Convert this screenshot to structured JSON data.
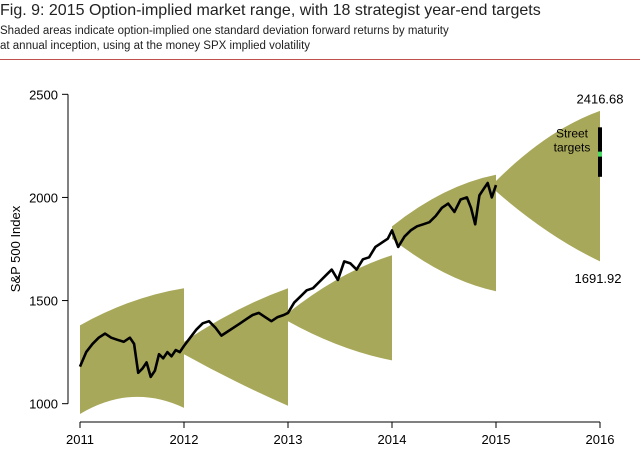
{
  "figure": {
    "title": "Fig. 9: 2015 Option-implied market range, with 18 strategist year-end targets",
    "subtitle_line1": "Shaded areas indicate option-implied one standard deviation forward returns by maturity",
    "subtitle_line2": "at annual inception, using at the money SPX implied volatility"
  },
  "colors": {
    "band_fill": "#a8a85a",
    "line": "#000000",
    "target_bar": "#000000",
    "target_median": "#4cd964",
    "rule": "#c0504d"
  },
  "chart_data": {
    "type": "line",
    "title": "",
    "xlabel": "",
    "ylabel": "S&P 500 Index",
    "xlim": [
      2011,
      2016
    ],
    "ylim": [
      950,
      2550
    ],
    "x_ticks": [
      "2011",
      "2012",
      "2013",
      "2014",
      "2015",
      "2016"
    ],
    "y_ticks": [
      "1000",
      "1500",
      "2000",
      "2500"
    ],
    "series": [
      {
        "name": "S&P 500",
        "x": [
          2011.0,
          2011.06,
          2011.12,
          2011.18,
          2011.24,
          2011.3,
          2011.36,
          2011.42,
          2011.48,
          2011.52,
          2011.56,
          2011.6,
          2011.64,
          2011.68,
          2011.72,
          2011.76,
          2011.8,
          2011.84,
          2011.88,
          2011.92,
          2011.96,
          2012.0,
          2012.06,
          2012.12,
          2012.18,
          2012.24,
          2012.3,
          2012.36,
          2012.42,
          2012.48,
          2012.54,
          2012.6,
          2012.66,
          2012.72,
          2012.78,
          2012.84,
          2012.9,
          2012.96,
          2013.0,
          2013.06,
          2013.12,
          2013.18,
          2013.24,
          2013.3,
          2013.36,
          2013.42,
          2013.48,
          2013.54,
          2013.6,
          2013.66,
          2013.72,
          2013.78,
          2013.84,
          2013.9,
          2013.96,
          2014.0,
          2014.06,
          2014.12,
          2014.18,
          2014.24,
          2014.3,
          2014.36,
          2014.42,
          2014.48,
          2014.54,
          2014.6,
          2014.66,
          2014.72,
          2014.76,
          2014.8,
          2014.84,
          2014.88,
          2014.92,
          2014.96,
          2015.0
        ],
        "values": [
          1180,
          1250,
          1290,
          1320,
          1340,
          1320,
          1310,
          1300,
          1320,
          1290,
          1150,
          1170,
          1200,
          1130,
          1160,
          1240,
          1220,
          1250,
          1230,
          1260,
          1250,
          1280,
          1320,
          1360,
          1390,
          1400,
          1370,
          1330,
          1350,
          1370,
          1390,
          1410,
          1430,
          1440,
          1420,
          1400,
          1420,
          1430,
          1440,
          1490,
          1520,
          1550,
          1560,
          1590,
          1620,
          1650,
          1600,
          1690,
          1680,
          1650,
          1700,
          1710,
          1760,
          1780,
          1800,
          1840,
          1760,
          1810,
          1840,
          1860,
          1870,
          1880,
          1910,
          1950,
          1970,
          1930,
          1990,
          2000,
          1950,
          1870,
          2010,
          2040,
          2070,
          2000,
          2060
        ]
      }
    ],
    "bands": [
      {
        "year": "2011",
        "start": 2011.0,
        "end": 2012.0,
        "upper": [
          1380,
          1520,
          1560
        ],
        "lower": [
          950,
          1100,
          980
        ]
      },
      {
        "year": "2012",
        "start": 2012.0,
        "end": 2013.0,
        "upper": [
          1300,
          1470,
          1560
        ],
        "lower": [
          1240,
          1100,
          990
        ]
      },
      {
        "year": "2013",
        "start": 2013.0,
        "end": 2014.0,
        "upper": [
          1440,
          1640,
          1720
        ],
        "lower": [
          1400,
          1260,
          1210
        ]
      },
      {
        "year": "2014",
        "start": 2014.0,
        "end": 2015.0,
        "upper": [
          1860,
          2060,
          2110
        ],
        "lower": [
          1800,
          1600,
          1545
        ]
      },
      {
        "year": "2015",
        "start": 2015.0,
        "end": 2016.0,
        "upper": [
          2080,
          2330,
          2420
        ],
        "lower": [
          2030,
          1810,
          1690
        ]
      }
    ],
    "annotations": {
      "band_top_label": "2416.68",
      "band_bottom_label": "1691.92",
      "street_targets_line1": "Street",
      "street_targets_line2": "targets",
      "targets_low": 2100,
      "targets_high": 2340,
      "targets_median": 2210
    }
  }
}
